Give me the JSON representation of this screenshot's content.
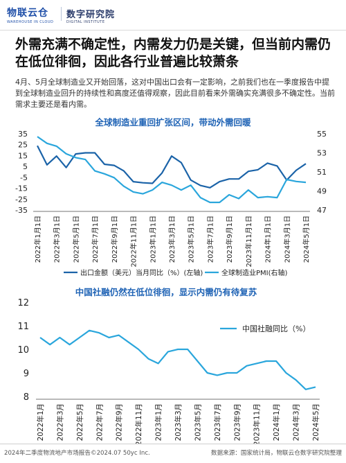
{
  "header": {
    "logo_main": "物联云仓",
    "logo_sub": "WAREHOUSE IN CLOUD",
    "logo2_main": "数字研究院",
    "logo2_sub": "DIGITAL INSTITUTE"
  },
  "title": "外需充满不确定性，内需发力仍是关键，但当前内需仍在低位徘徊，因此各行业普遍比较萧条",
  "paragraph": "4月、5月全球制造业又开始回落，这对中国出口会有一定影响，之前我们也在一季度报告中提到全球制造业回升的持续性和高度还值得观察，因此目前看来外需确实充满很多不确定性。当前需求主要还是看内需。",
  "colors": {
    "dark_line": "#1b63a8",
    "light_line": "#2aa6dc",
    "title": "#1f63b5"
  },
  "chart_data": [
    {
      "type": "line",
      "title": "全球制造业重回扩张区间，带动外需回暖",
      "categories": [
        "2022年1月1日",
        "2022年2月",
        "2022年3月",
        "2022年4月",
        "2022年5月",
        "2022年6月",
        "2022年7月",
        "2022年8月",
        "2022年9月",
        "2022年10月",
        "2022年11月",
        "2022年12月",
        "2023年1月",
        "2023年2月",
        "2023年3月",
        "2023年4月",
        "2023年5月",
        "2023年6月",
        "2023年7月",
        "2023年8月",
        "2023年9月",
        "2023年10月",
        "2023年11月",
        "2023年12月",
        "2024年1月",
        "2024年2月",
        "2024年3月",
        "2024年4月",
        "2024年5月1日"
      ],
      "tick_labels": [
        "2022年1月1日",
        "2022年3月1日",
        "2022年5月1日",
        "2022年7月1日",
        "2022年9月1日",
        "2022年11月1日",
        "2023年1月1日",
        "2023年3月1日",
        "2023年5月1日",
        "2023年7月1日",
        "2023年9月1日",
        "2023年11月1日",
        "2024年1月1日",
        "2024年3月1日",
        "2024年5月1日"
      ],
      "y_left": {
        "lim": [
          -35,
          35
        ],
        "ticks": [
          "35",
          "25",
          "15",
          "5",
          "-5",
          "-15",
          "-25",
          "-35"
        ]
      },
      "y_right": {
        "lim": [
          47,
          55
        ],
        "ticks": [
          "55",
          "53",
          "51",
          "49",
          "47"
        ]
      },
      "series": [
        {
          "name": "出口金额（美元）当月同比（%）(左轴)",
          "axis": "left",
          "color": "#1b63a8",
          "values": [
            24.0,
            6.5,
            14.5,
            4.0,
            16.5,
            17.5,
            17.5,
            7.0,
            6.0,
            1.0,
            -9.0,
            -10.0,
            -10.5,
            -1.0,
            14.5,
            8.5,
            -7.5,
            -12.5,
            -14.5,
            -9.0,
            -6.5,
            -6.5,
            0.5,
            2.0,
            8.0,
            5.5,
            -7.5,
            1.5,
            7.5
          ]
        },
        {
          "name": "全球制造业PMI(右轴)",
          "axis": "right",
          "color": "#2aa6dc",
          "values": [
            54.7,
            54.0,
            53.7,
            52.9,
            52.5,
            52.3,
            51.1,
            50.8,
            50.4,
            49.5,
            48.9,
            48.7,
            49.1,
            49.9,
            49.6,
            49.1,
            49.6,
            48.3,
            47.8,
            47.8,
            48.6,
            48.2,
            49.1,
            48.3,
            48.4,
            48.3,
            50.2,
            50.0,
            49.9
          ]
        }
      ]
    },
    {
      "type": "line",
      "title": "中国社融仍然在低位徘徊，显示内需仍有待复苏",
      "categories": [
        "2022年1月",
        "2022年2月",
        "2022年3月",
        "2022年4月",
        "2022年5月",
        "2022年6月",
        "2022年7月",
        "2022年8月",
        "2022年9月",
        "2022年10月",
        "2022年11月",
        "2022年12月",
        "2023年1月",
        "2023年2月",
        "2023年3月",
        "2023年4月",
        "2023年5月",
        "2023年6月",
        "2023年7月",
        "2023年8月",
        "2023年9月",
        "2023年10月",
        "2023年11月",
        "2023年12月",
        "2024年1月",
        "2024年2月",
        "2024年3月",
        "2024年4月",
        "2024年5月"
      ],
      "tick_labels": [
        "2022年1月",
        "2022年3月",
        "2022年5月",
        "2022年7月",
        "2022年9月",
        "2022年11月",
        "2023年1月",
        "2023年3月",
        "2023年5月",
        "2023年7月",
        "2023年9月",
        "2023年11月",
        "2024年1月",
        "2024年3月",
        "2024年5月"
      ],
      "y": {
        "lim": [
          8,
          12
        ],
        "ticks": [
          "12",
          "11",
          "10",
          "9",
          "8"
        ]
      },
      "series": [
        {
          "name": "中国社融同比（%）",
          "color": "#2aa6dc",
          "values": [
            10.5,
            10.2,
            10.5,
            10.2,
            10.5,
            10.8,
            10.7,
            10.5,
            10.6,
            10.3,
            10.0,
            9.6,
            9.4,
            9.9,
            10.0,
            10.0,
            9.5,
            9.0,
            8.9,
            9.0,
            9.0,
            9.3,
            9.4,
            9.5,
            9.5,
            9.0,
            8.7,
            8.3,
            8.4
          ]
        }
      ]
    }
  ],
  "footer": {
    "left": "2024年二季度物流地产市场报告©2024.07 50yc Inc.",
    "right": "数据来源：国家统计局，物联云仓数字研究院整理"
  }
}
